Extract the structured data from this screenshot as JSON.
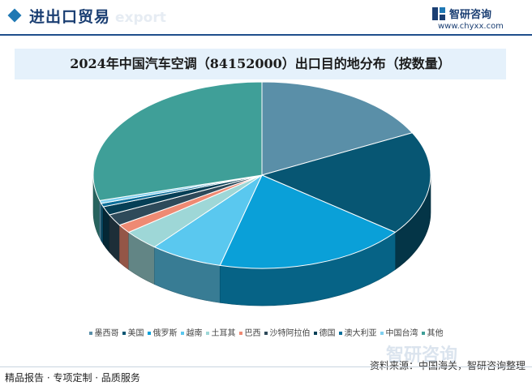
{
  "header": {
    "section_title": "进出口贸易",
    "watermark_word": "export",
    "brand_name": "智研咨询",
    "brand_url": "www.chyxx.com"
  },
  "watermarks": {
    "bottom_brand": "智研咨询"
  },
  "source_text": "资料来源：中国海关，智研咨询整理",
  "footer_text": "精品报告 · 专项定制 · 品质服务",
  "colors": {
    "header_accent": "#1f78b4",
    "title_band": "#e5f1fb",
    "title_text": "#1b1b1b"
  },
  "chart_data": {
    "type": "pie",
    "style": "3d-exploded-perspective",
    "title": "2024年中国汽车空调（84152000）出口目的地分布（按数量）",
    "legend_position": "bottom",
    "unit": "share",
    "categories": [
      "墨西哥",
      "美国",
      "俄罗斯",
      "越南",
      "土耳其",
      "巴西",
      "沙特阿拉伯",
      "德国",
      "澳大利亚",
      "中国台湾",
      "其他"
    ],
    "values": [
      17.5,
      18.0,
      18.5,
      7.0,
      3.5,
      1.5,
      2.0,
      1.5,
      0.6,
      0.5,
      29.4
    ],
    "series_colors": [
      "#5a8fa8",
      "#075673",
      "#0aa0d8",
      "#5ac8ef",
      "#9ed7d7",
      "#ee8a73",
      "#2e4a5a",
      "#063f56",
      "#0a6e9a",
      "#7fd0f0",
      "#3f9f98"
    ]
  }
}
